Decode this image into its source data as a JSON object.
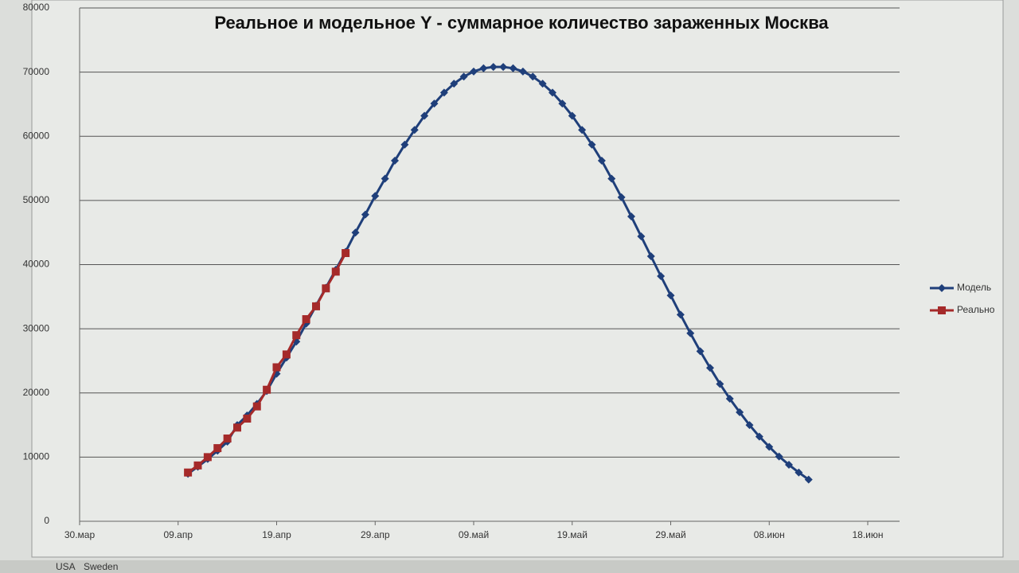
{
  "chart_data": {
    "type": "line",
    "title": "Реальное и модельное Y - суммарное количество зараженных Москва",
    "categories": [
      "30.мар",
      null,
      null,
      null,
      null,
      null,
      null,
      null,
      null,
      null,
      "09.апр",
      null,
      null,
      null,
      null,
      null,
      null,
      null,
      null,
      null,
      "19.апр",
      null,
      null,
      null,
      null,
      null,
      null,
      null,
      null,
      null,
      "29.апр",
      null,
      null,
      null,
      null,
      null,
      null,
      null,
      null,
      null,
      "09.май",
      null,
      null,
      null,
      null,
      null,
      null,
      null,
      null,
      null,
      "19.май",
      null,
      null,
      null,
      null,
      null,
      null,
      null,
      null,
      null,
      "29.май",
      null,
      null,
      null,
      null,
      null,
      null,
      null,
      null,
      null,
      "08.июн",
      null,
      null,
      null,
      null,
      null,
      null,
      null,
      null,
      null,
      "18.июн"
    ],
    "series": [
      {
        "name": "Модель",
        "color": "#1f3f7a",
        "marker": "diamond",
        "values": [
          null,
          null,
          null,
          null,
          null,
          null,
          null,
          null,
          null,
          null,
          null,
          7400,
          8500,
          9700,
          11000,
          12400,
          15000,
          16500,
          18300,
          20300,
          23000,
          25500,
          28000,
          30800,
          33600,
          36400,
          39200,
          42000,
          45000,
          47800,
          50700,
          53400,
          56200,
          58700,
          61000,
          63200,
          65100,
          66800,
          68200,
          69300,
          70100,
          70600,
          70800,
          70800,
          70600,
          70100,
          69300,
          68200,
          66800,
          65100,
          63200,
          61000,
          58700,
          56200,
          53400,
          50500,
          47500,
          44400,
          41300,
          38200,
          35200,
          32200,
          29300,
          26500,
          23900,
          21400,
          19100,
          17000,
          15000,
          13200,
          11600,
          10100,
          8800,
          7600,
          6500,
          null,
          null,
          null,
          null,
          null,
          null
        ]
      },
      {
        "name": "Реально",
        "color": "#a52a2a",
        "marker": "square",
        "values": [
          null,
          null,
          null,
          null,
          null,
          null,
          null,
          null,
          null,
          null,
          null,
          7600,
          8700,
          10000,
          11400,
          12900,
          14600,
          16000,
          17900,
          20500,
          24000,
          26000,
          29000,
          31500,
          33500,
          36300,
          38900,
          41800,
          null,
          null,
          null,
          null,
          null,
          null,
          null,
          null,
          null,
          null,
          null,
          null,
          null,
          null,
          null,
          null,
          null,
          null,
          null,
          null,
          null,
          null,
          null,
          null,
          null,
          null,
          null,
          null,
          null,
          null,
          null,
          null,
          null,
          null,
          null,
          null,
          null,
          null,
          null,
          null,
          null,
          null,
          null,
          null,
          null,
          null,
          null,
          null,
          null,
          null,
          null,
          null,
          null
        ]
      }
    ],
    "ylim": [
      0,
      80000
    ],
    "yticks": [
      0,
      10000,
      20000,
      30000,
      40000,
      50000,
      60000,
      70000,
      80000
    ],
    "grid": true,
    "legend": "right"
  },
  "sheet_tabs": [
    "USA",
    "Sweden"
  ]
}
